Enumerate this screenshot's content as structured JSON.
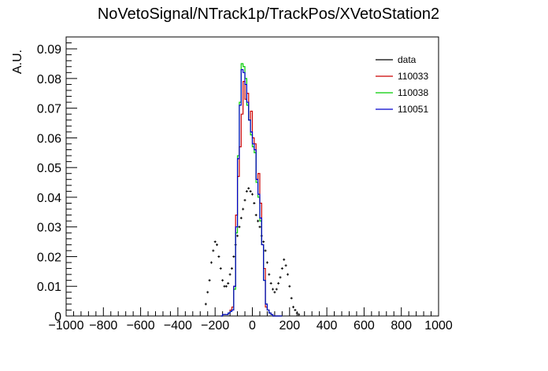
{
  "chart_data": {
    "type": "line",
    "title": "NoVetoSignal/NTrack1p/TrackPos/XVetoStation2",
    "xlabel": "",
    "ylabel": "A.U.",
    "xlim": [
      -1000,
      1000
    ],
    "ylim": [
      0,
      0.094
    ],
    "xticks": [
      -1000,
      -800,
      -600,
      -400,
      -200,
      0,
      200,
      400,
      600,
      800,
      1000
    ],
    "yticks": [
      0,
      0.01,
      0.02,
      0.03,
      0.04,
      0.05,
      0.06,
      0.07,
      0.08,
      0.09
    ],
    "xtick_labels": [
      "−1000",
      "−800",
      "−600",
      "−400",
      "−200",
      "0",
      "200",
      "400",
      "600",
      "800",
      "1000"
    ],
    "ytick_labels": [
      "0",
      "0.01",
      "0.02",
      "0.03",
      "0.04",
      "0.05",
      "0.06",
      "0.07",
      "0.08",
      "0.09"
    ],
    "legend_position": "top-right",
    "grid": false,
    "series": [
      {
        "name": "data",
        "style": "markers",
        "color": "#000000",
        "x": [
          -250,
          -240,
          -230,
          -220,
          -210,
          -200,
          -190,
          -180,
          -170,
          -160,
          -150,
          -140,
          -130,
          -120,
          -110,
          -100,
          -90,
          -80,
          -70,
          -60,
          -50,
          -40,
          -30,
          -20,
          -10,
          0,
          10,
          20,
          30,
          40,
          50,
          60,
          70,
          80,
          90,
          100,
          110,
          120,
          130,
          140,
          150,
          160,
          170,
          180,
          190,
          200,
          210,
          220,
          230,
          240,
          250
        ],
        "values": [
          0.004,
          0.008,
          0.012,
          0.018,
          0.022,
          0.025,
          0.024,
          0.02,
          0.016,
          0.012,
          0.01,
          0.01,
          0.011,
          0.014,
          0.016,
          0.02,
          0.024,
          0.027,
          0.03,
          0.033,
          0.036,
          0.039,
          0.042,
          0.043,
          0.042,
          0.041,
          0.038,
          0.034,
          0.032,
          0.03,
          0.027,
          0.025,
          0.022,
          0.018,
          0.014,
          0.011,
          0.009,
          0.008,
          0.009,
          0.011,
          0.013,
          0.016,
          0.019,
          0.017,
          0.014,
          0.01,
          0.006,
          0.003,
          0.002,
          0.001,
          0.0005
        ]
      },
      {
        "name": "110033",
        "style": "step",
        "color": "#cc0000",
        "edges": [
          -170,
          -160,
          -150,
          -140,
          -130,
          -120,
          -110,
          -100,
          -90,
          -80,
          -70,
          -60,
          -50,
          -40,
          -30,
          -20,
          -10,
          0,
          10,
          20,
          30,
          40,
          50,
          60,
          70,
          80,
          90,
          100,
          110,
          120,
          130,
          140,
          150,
          160
        ],
        "values": [
          0,
          0.0005,
          0.0005,
          0.0005,
          0.001,
          0.002,
          0.003,
          0.01,
          0.034,
          0.047,
          0.057,
          0.068,
          0.079,
          0.073,
          0.075,
          0.066,
          0.069,
          0.06,
          0.058,
          0.046,
          0.048,
          0.038,
          0.024,
          0.016,
          0.003,
          0.002,
          0.001,
          0.0005,
          0,
          0,
          0,
          0,
          0
        ]
      },
      {
        "name": "110038",
        "style": "step",
        "color": "#00cc00",
        "edges": [
          -170,
          -160,
          -150,
          -140,
          -130,
          -120,
          -110,
          -100,
          -90,
          -80,
          -70,
          -60,
          -50,
          -40,
          -30,
          -20,
          -10,
          0,
          10,
          20,
          30,
          40,
          50,
          60,
          70,
          80,
          90,
          100,
          110,
          120,
          130,
          140,
          150,
          160
        ],
        "values": [
          0,
          0.0005,
          0.0005,
          0.0005,
          0.001,
          0.0015,
          0.002,
          0.009,
          0.028,
          0.054,
          0.072,
          0.085,
          0.084,
          0.08,
          0.071,
          0.066,
          0.061,
          0.057,
          0.055,
          0.045,
          0.04,
          0.032,
          0.024,
          0.012,
          0.004,
          0.002,
          0.001,
          0.0005,
          0,
          0,
          0,
          0,
          0
        ]
      },
      {
        "name": "110051",
        "style": "step",
        "color": "#0000cc",
        "edges": [
          -170,
          -160,
          -150,
          -140,
          -130,
          -120,
          -110,
          -100,
          -90,
          -80,
          -70,
          -60,
          -50,
          -40,
          -30,
          -20,
          -10,
          0,
          10,
          20,
          30,
          40,
          50,
          60,
          70,
          80,
          90,
          100,
          110,
          120,
          130,
          140,
          150,
          160
        ],
        "values": [
          0,
          0.0005,
          0.0005,
          0.0005,
          0.001,
          0.0015,
          0.002,
          0.01,
          0.03,
          0.053,
          0.071,
          0.083,
          0.082,
          0.078,
          0.072,
          0.066,
          0.062,
          0.058,
          0.056,
          0.046,
          0.041,
          0.033,
          0.024,
          0.012,
          0.004,
          0.002,
          0.001,
          0.0005,
          0,
          0,
          0,
          0,
          0
        ]
      }
    ]
  }
}
